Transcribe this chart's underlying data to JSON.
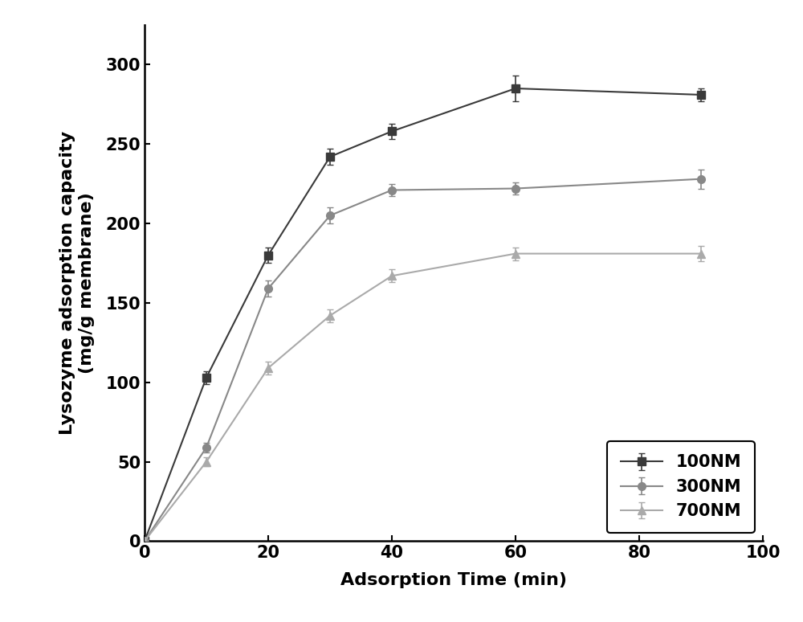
{
  "series": [
    {
      "label": "100NM",
      "x": [
        0,
        10,
        20,
        30,
        40,
        60,
        90
      ],
      "y": [
        0,
        103,
        180,
        242,
        258,
        285,
        281
      ],
      "yerr": [
        0,
        4,
        5,
        5,
        5,
        8,
        4
      ],
      "color": "#3a3a3a",
      "marker": "s",
      "markersize": 7,
      "linewidth": 1.5
    },
    {
      "label": "300NM",
      "x": [
        0,
        10,
        20,
        30,
        40,
        60,
        90
      ],
      "y": [
        0,
        59,
        159,
        205,
        221,
        222,
        228
      ],
      "yerr": [
        0,
        3,
        5,
        5,
        4,
        4,
        6
      ],
      "color": "#888888",
      "marker": "o",
      "markersize": 7,
      "linewidth": 1.5
    },
    {
      "label": "700NM",
      "x": [
        0,
        10,
        20,
        30,
        40,
        60,
        90
      ],
      "y": [
        0,
        50,
        109,
        142,
        167,
        181,
        181
      ],
      "yerr": [
        0,
        3,
        4,
        4,
        4,
        4,
        5
      ],
      "color": "#aaaaaa",
      "marker": "^",
      "markersize": 7,
      "linewidth": 1.5
    }
  ],
  "xlabel": "Adsorption Time (min)",
  "ylabel_line1": "Lysozyme adsorption capacity",
  "ylabel_line2": "(mg/g membrane)",
  "xlim": [
    0,
    100
  ],
  "ylim": [
    0,
    325
  ],
  "xticks": [
    0,
    20,
    40,
    60,
    80,
    100
  ],
  "yticks": [
    0,
    50,
    100,
    150,
    200,
    250,
    300
  ],
  "legend_fontsize": 15,
  "axis_label_fontsize": 16,
  "tick_fontsize": 15,
  "figure_facecolor": "#ffffff",
  "axes_facecolor": "#ffffff",
  "capsize": 3,
  "elinewidth": 1.2
}
